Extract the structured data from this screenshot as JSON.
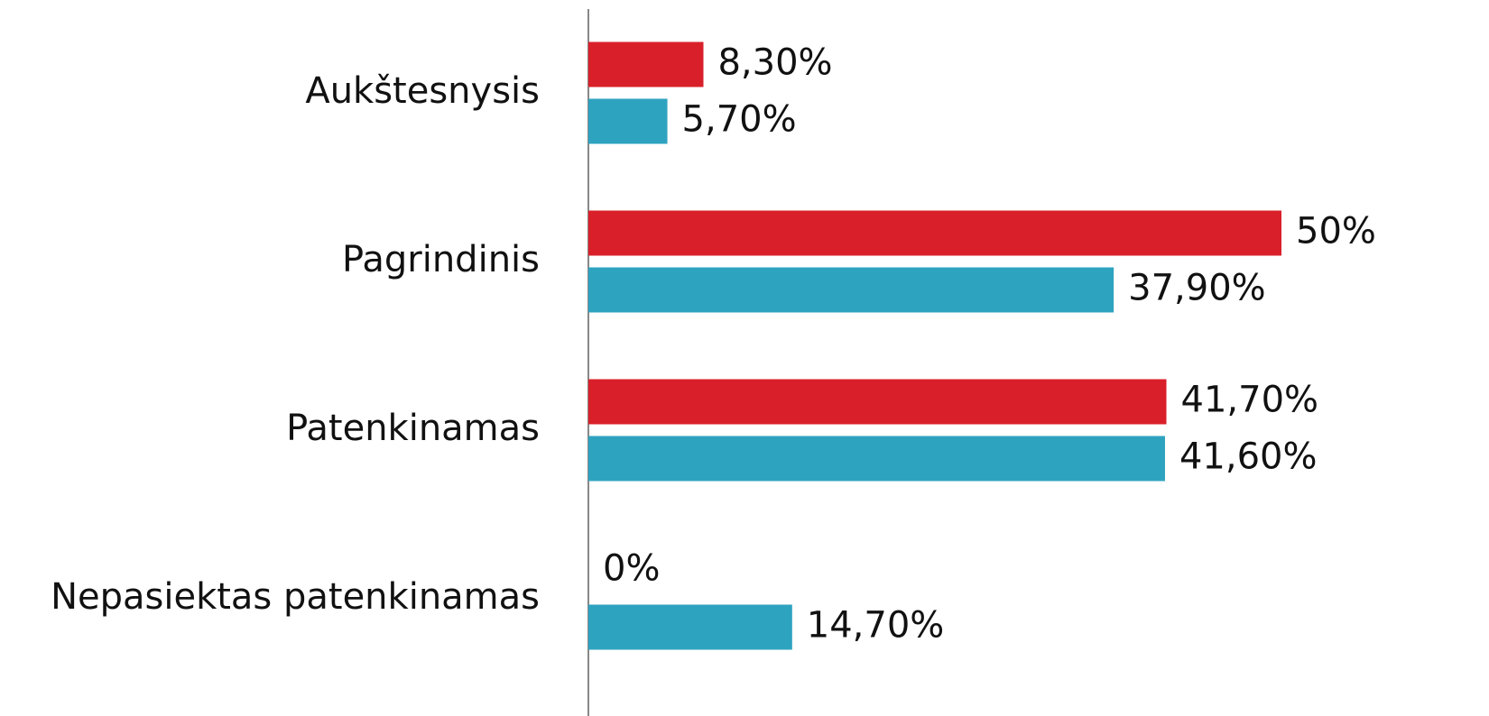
{
  "chart_data": {
    "type": "bar",
    "orientation": "horizontal",
    "categories": [
      "Aukštesnysis",
      "Pagrindinis",
      "Patenkinamas",
      "Nepasiektas patenkinamas"
    ],
    "series": [
      {
        "color": "#d9202a",
        "values": [
          8.3,
          50,
          41.7,
          0
        ],
        "value_labels": [
          "8,30%",
          "50%",
          "41,70%",
          "0%"
        ]
      },
      {
        "color": "#2ea3c0",
        "values": [
          5.7,
          37.9,
          41.6,
          14.7
        ],
        "value_labels": [
          "5,70%",
          "37,90%",
          "41,60%",
          "14,70%"
        ]
      }
    ]
  }
}
